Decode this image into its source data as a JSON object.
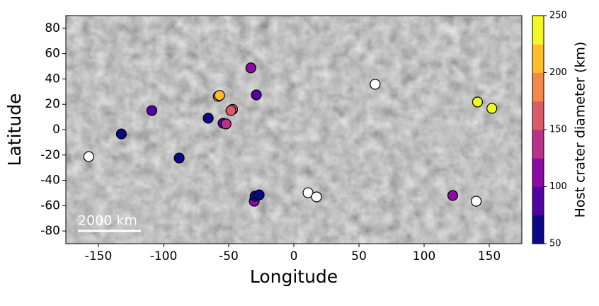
{
  "chart_data": {
    "type": "scatter",
    "xlabel": "Longitude",
    "ylabel": "Latitude",
    "colorbar_label": "Host crater diameter (km)",
    "annotation": "2000 km",
    "xlim": [
      -175,
      175
    ],
    "ylim": [
      -90,
      90
    ],
    "xticks": [
      -150,
      -100,
      -50,
      0,
      50,
      100,
      150
    ],
    "yticks": [
      -80,
      -60,
      -40,
      -20,
      0,
      20,
      40,
      60,
      80
    ],
    "clim": [
      50,
      250
    ],
    "cticks": [
      50,
      100,
      150,
      200,
      250
    ],
    "colormap": [
      "#0d0887",
      "#5302a3",
      "#8b0aa5",
      "#b83289",
      "#db5c68",
      "#f48849",
      "#febd2a",
      "#f0f921"
    ],
    "missing_color": "#ffffff",
    "x": [
      -157.4,
      -132.4,
      -109,
      -88,
      -65.7,
      -54.3,
      -52,
      -58,
      -57,
      -47,
      -48.3,
      -33,
      -28.8,
      -30.4,
      -29.8,
      -26.6,
      10.9,
      17.4,
      62.4,
      122,
      140,
      141,
      152
    ],
    "values": [
      -21.3,
      -3.4,
      15,
      -22.4,
      9,
      5,
      4.5,
      26.3,
      27,
      16,
      15,
      48.7,
      27.4,
      -56.5,
      -52.6,
      -51.5,
      -49.8,
      -53.1,
      35.8,
      -52,
      -56.5,
      21.8,
      16.8
    ],
    "diameter": [
      null,
      60,
      90,
      65,
      60,
      80,
      130,
      190,
      205,
      155,
      160,
      105,
      95,
      100,
      60,
      60,
      null,
      null,
      null,
      110,
      null,
      240,
      240
    ]
  }
}
